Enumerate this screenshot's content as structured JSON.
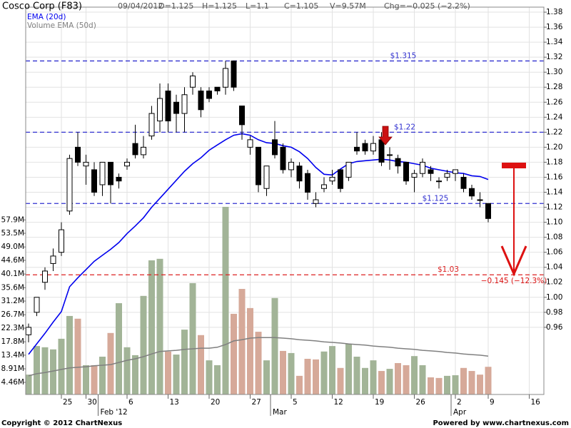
{
  "chart_data": {
    "type": "candlestick",
    "title": "Cosco Corp (F83)",
    "header": {
      "date": "09/04/2012",
      "open": "O=1.125",
      "high": "H=1.125",
      "low": "L=1.1",
      "close": "C=1.105",
      "volume": "V=9.57M",
      "change": "Chg=−0.025 (−2.2%)"
    },
    "categories": [
      null,
      null,
      null,
      null,
      "25",
      null,
      null,
      "30",
      null,
      null,
      null,
      null,
      "6",
      null,
      null,
      null,
      null,
      "13",
      null,
      null,
      null,
      null,
      "20",
      null,
      null,
      null,
      null,
      "27",
      null,
      null,
      null,
      null,
      "5",
      null,
      null,
      null,
      null,
      "12",
      null,
      null,
      null,
      null,
      "19",
      null,
      null,
      null,
      null,
      "26",
      null,
      null,
      null,
      null,
      "2",
      null,
      null,
      null,
      "9",
      null,
      null,
      null,
      null,
      "16"
    ],
    "month_labels": [
      null,
      null,
      null,
      null,
      null,
      null,
      null,
      null,
      null,
      "Feb '12",
      null,
      null,
      null,
      null,
      null,
      null,
      null,
      null,
      null,
      null,
      null,
      null,
      null,
      null,
      null,
      null,
      null,
      null,
      null,
      null,
      "Mar",
      null,
      null,
      null,
      null,
      null,
      null,
      null,
      null,
      null,
      null,
      null,
      null,
      null,
      null,
      null,
      null,
      null,
      null,
      null,
      null,
      null,
      "Apr",
      null,
      null,
      null,
      null,
      null,
      null,
      null,
      null,
      null
    ],
    "ohlc": {
      "up_color": "#ffffff",
      "down_color": "#000000",
      "open": [
        0.95,
        0.98,
        1.02,
        1.045,
        1.06,
        1.115,
        1.2,
        1.175,
        1.17,
        1.15,
        1.18,
        1.16,
        1.175,
        1.205,
        1.19,
        1.215,
        1.235,
        1.275,
        1.26,
        1.245,
        1.28,
        1.275,
        1.275,
        1.28,
        1.28,
        1.315,
        1.255,
        1.2,
        1.2,
        1.145,
        1.21,
        1.2,
        1.17,
        1.175,
        1.165,
        1.125,
        1.145,
        1.155,
        1.17,
        1.16,
        1.2,
        1.205,
        1.195,
        1.21,
        1.19,
        1.185,
        1.18,
        1.16,
        1.165,
        1.17,
        1.155,
        1.16,
        1.165,
        1.16,
        1.145,
        1.13,
        1.125,
        null,
        null,
        null,
        null,
        null
      ],
      "high": [
        0.965,
        1.0,
        1.04,
        1.065,
        1.1,
        1.19,
        1.22,
        1.19,
        1.18,
        1.18,
        1.18,
        1.165,
        1.185,
        1.23,
        1.215,
        1.255,
        1.285,
        1.285,
        1.27,
        1.28,
        1.3,
        1.28,
        1.28,
        1.28,
        1.315,
        1.315,
        1.255,
        1.215,
        1.2,
        1.175,
        1.235,
        1.205,
        1.185,
        1.18,
        1.17,
        1.14,
        1.16,
        1.17,
        1.17,
        1.18,
        1.22,
        1.21,
        1.215,
        1.22,
        1.2,
        1.19,
        1.18,
        1.17,
        1.185,
        1.175,
        1.16,
        1.17,
        1.17,
        1.165,
        1.15,
        1.14,
        1.125,
        null,
        null,
        null,
        null,
        null
      ],
      "low": [
        0.94,
        0.975,
        1.01,
        1.035,
        1.055,
        1.11,
        1.175,
        1.15,
        1.135,
        1.135,
        1.125,
        1.145,
        1.17,
        1.185,
        1.185,
        1.21,
        1.22,
        1.22,
        1.22,
        1.22,
        1.27,
        1.24,
        1.26,
        1.27,
        1.27,
        1.275,
        1.21,
        1.19,
        1.14,
        1.135,
        1.185,
        1.165,
        1.16,
        1.145,
        1.13,
        1.12,
        1.14,
        1.15,
        1.14,
        1.155,
        1.19,
        1.19,
        1.19,
        1.175,
        1.17,
        1.165,
        1.15,
        1.14,
        1.16,
        1.155,
        1.145,
        1.155,
        1.155,
        1.14,
        1.13,
        1.12,
        1.1,
        null,
        null,
        null,
        null,
        null
      ],
      "close": [
        0.96,
        1.0,
        1.035,
        1.055,
        1.09,
        1.185,
        1.18,
        1.18,
        1.14,
        1.18,
        1.15,
        1.155,
        1.18,
        1.19,
        1.2,
        1.245,
        1.265,
        1.235,
        1.245,
        1.27,
        1.295,
        1.25,
        1.265,
        1.275,
        1.305,
        1.28,
        1.23,
        1.21,
        1.15,
        1.175,
        1.19,
        1.17,
        1.18,
        1.155,
        1.14,
        1.13,
        1.15,
        1.16,
        1.145,
        1.18,
        1.195,
        1.195,
        1.205,
        1.18,
        1.19,
        1.175,
        1.155,
        1.165,
        1.18,
        1.165,
        1.155,
        1.165,
        1.17,
        1.145,
        1.135,
        1.13,
        1.105,
        null,
        null,
        null,
        null,
        null
      ]
    },
    "ema": {
      "name": "EMA (20d)",
      "color": "#0000ee",
      "values": [
        0.924,
        0.938,
        0.952,
        0.967,
        0.981,
        1.014,
        1.026,
        1.037,
        1.048,
        1.056,
        1.064,
        1.073,
        1.085,
        1.095,
        1.106,
        1.12,
        1.132,
        1.144,
        1.156,
        1.168,
        1.178,
        1.186,
        1.196,
        1.203,
        1.21,
        1.216,
        1.218,
        1.216,
        1.21,
        1.206,
        1.205,
        1.202,
        1.2,
        1.194,
        1.185,
        1.173,
        1.164,
        1.163,
        1.171,
        1.178,
        1.181,
        1.182,
        1.183,
        1.184,
        1.183,
        1.181,
        1.18,
        1.178,
        1.176,
        1.172,
        1.17,
        1.168,
        1.166,
        1.165,
        1.162,
        1.161,
        1.157,
        null,
        null,
        null,
        null,
        null
      ]
    },
    "volume": {
      "axis": "y2",
      "up_color": "#a2b497",
      "down_color": "#d6a999",
      "values": [
        7.0,
        16.4,
        16.0,
        15.3,
        18.8,
        26.3,
        25.4,
        10.1,
        10.1,
        12.9,
        20.7,
        30.5,
        16.0,
        13.4,
        32.9,
        44.6,
        45.1,
        14.6,
        13.6,
        21.8,
        37.1,
        20.0,
        11.7,
        10.1,
        62.2,
        27.0,
        35.2,
        28.9,
        21.1,
        11.7,
        32.2,
        14.8,
        14.1,
        6.6,
        12.2,
        12.0,
        14.6,
        16.4,
        9.2,
        17.1,
        12.9,
        9.2,
        11.7,
        8.2,
        8.9,
        10.8,
        10.1,
        13.1,
        10.1,
        6.1,
        5.9,
        6.6,
        6.8,
        9.2,
        8.2,
        7.0,
        9.57,
        null,
        null,
        null,
        null,
        null
      ]
    },
    "volume_ema": {
      "name": "Volume EMA (50d)",
      "color": "#808080",
      "axis": "y2",
      "values": [
        6.6,
        7.3,
        7.7,
        8.2,
        8.7,
        9.2,
        9.4,
        9.6,
        9.9,
        10.1,
        10.3,
        11.0,
        11.7,
        12.2,
        12.9,
        13.8,
        14.6,
        14.8,
        15.0,
        15.3,
        15.5,
        15.7,
        15.7,
        16.0,
        16.9,
        18.1,
        18.5,
        19.0,
        19.2,
        19.2,
        19.2,
        19.0,
        18.8,
        18.5,
        18.3,
        18.1,
        17.8,
        17.6,
        17.4,
        17.1,
        16.9,
        16.7,
        16.4,
        16.2,
        16.0,
        15.7,
        15.5,
        15.3,
        15.0,
        14.8,
        14.6,
        14.3,
        14.1,
        13.8,
        13.6,
        13.4,
        13.1,
        null,
        null,
        null,
        null,
        null
      ]
    },
    "ylim": [
      0.8705,
      1.3867
    ],
    "yticks": [
      0.96,
      0.98,
      {
        "value": 1,
        "label": "1.00"
      },
      1.02,
      1.04,
      1.06,
      1.08,
      {
        "value": 1.1,
        "label": "1.10"
      },
      1.12,
      1.14,
      1.16,
      1.18,
      {
        "value": 1.2,
        "label": "1.20"
      },
      1.22,
      1.24,
      1.26,
      1.28,
      {
        "value": 1.3,
        "label": "1.30"
      },
      1.32,
      1.34,
      1.36,
      1.38
    ],
    "y2lim": [
      0.47,
      127.9
    ],
    "y2ticks": [
      {
        "value": 4.46,
        "label": "4.46M"
      },
      {
        "value": 8.91,
        "label": "8.91M"
      },
      {
        "value": 13.4,
        "label": "13.4M"
      },
      {
        "value": 17.8,
        "label": "17.8M"
      },
      {
        "value": 22.3,
        "label": "22.3M"
      },
      {
        "value": 26.7,
        "label": "26.7M"
      },
      {
        "value": 31.2,
        "label": "31.2M"
      },
      {
        "value": 35.6,
        "label": "35.6M"
      },
      {
        "value": 40.1,
        "label": "40.1M"
      },
      {
        "value": 44.6,
        "label": "44.6M"
      },
      {
        "value": 49.0,
        "label": "49.0M"
      },
      {
        "value": 53.5,
        "label": "53.5M"
      },
      {
        "value": 57.9,
        "label": "57.9M"
      }
    ],
    "grid": true,
    "levels": [
      {
        "value": 1.315,
        "label": "$1.315",
        "color": "#3030d0"
      },
      {
        "value": 1.22,
        "label": "$1.22",
        "color": "#3030d0"
      },
      {
        "value": 1.125,
        "label": "$1.125",
        "color": "#3030d0"
      },
      {
        "value": 1.03,
        "label": "$1.03",
        "color": "#dd2222"
      }
    ],
    "annotation": "−0.145 (−12.3%)",
    "footer_left": "Copyright © 2012 ChartNexus",
    "footer_right": "Powered by www.chartnexus.com"
  }
}
